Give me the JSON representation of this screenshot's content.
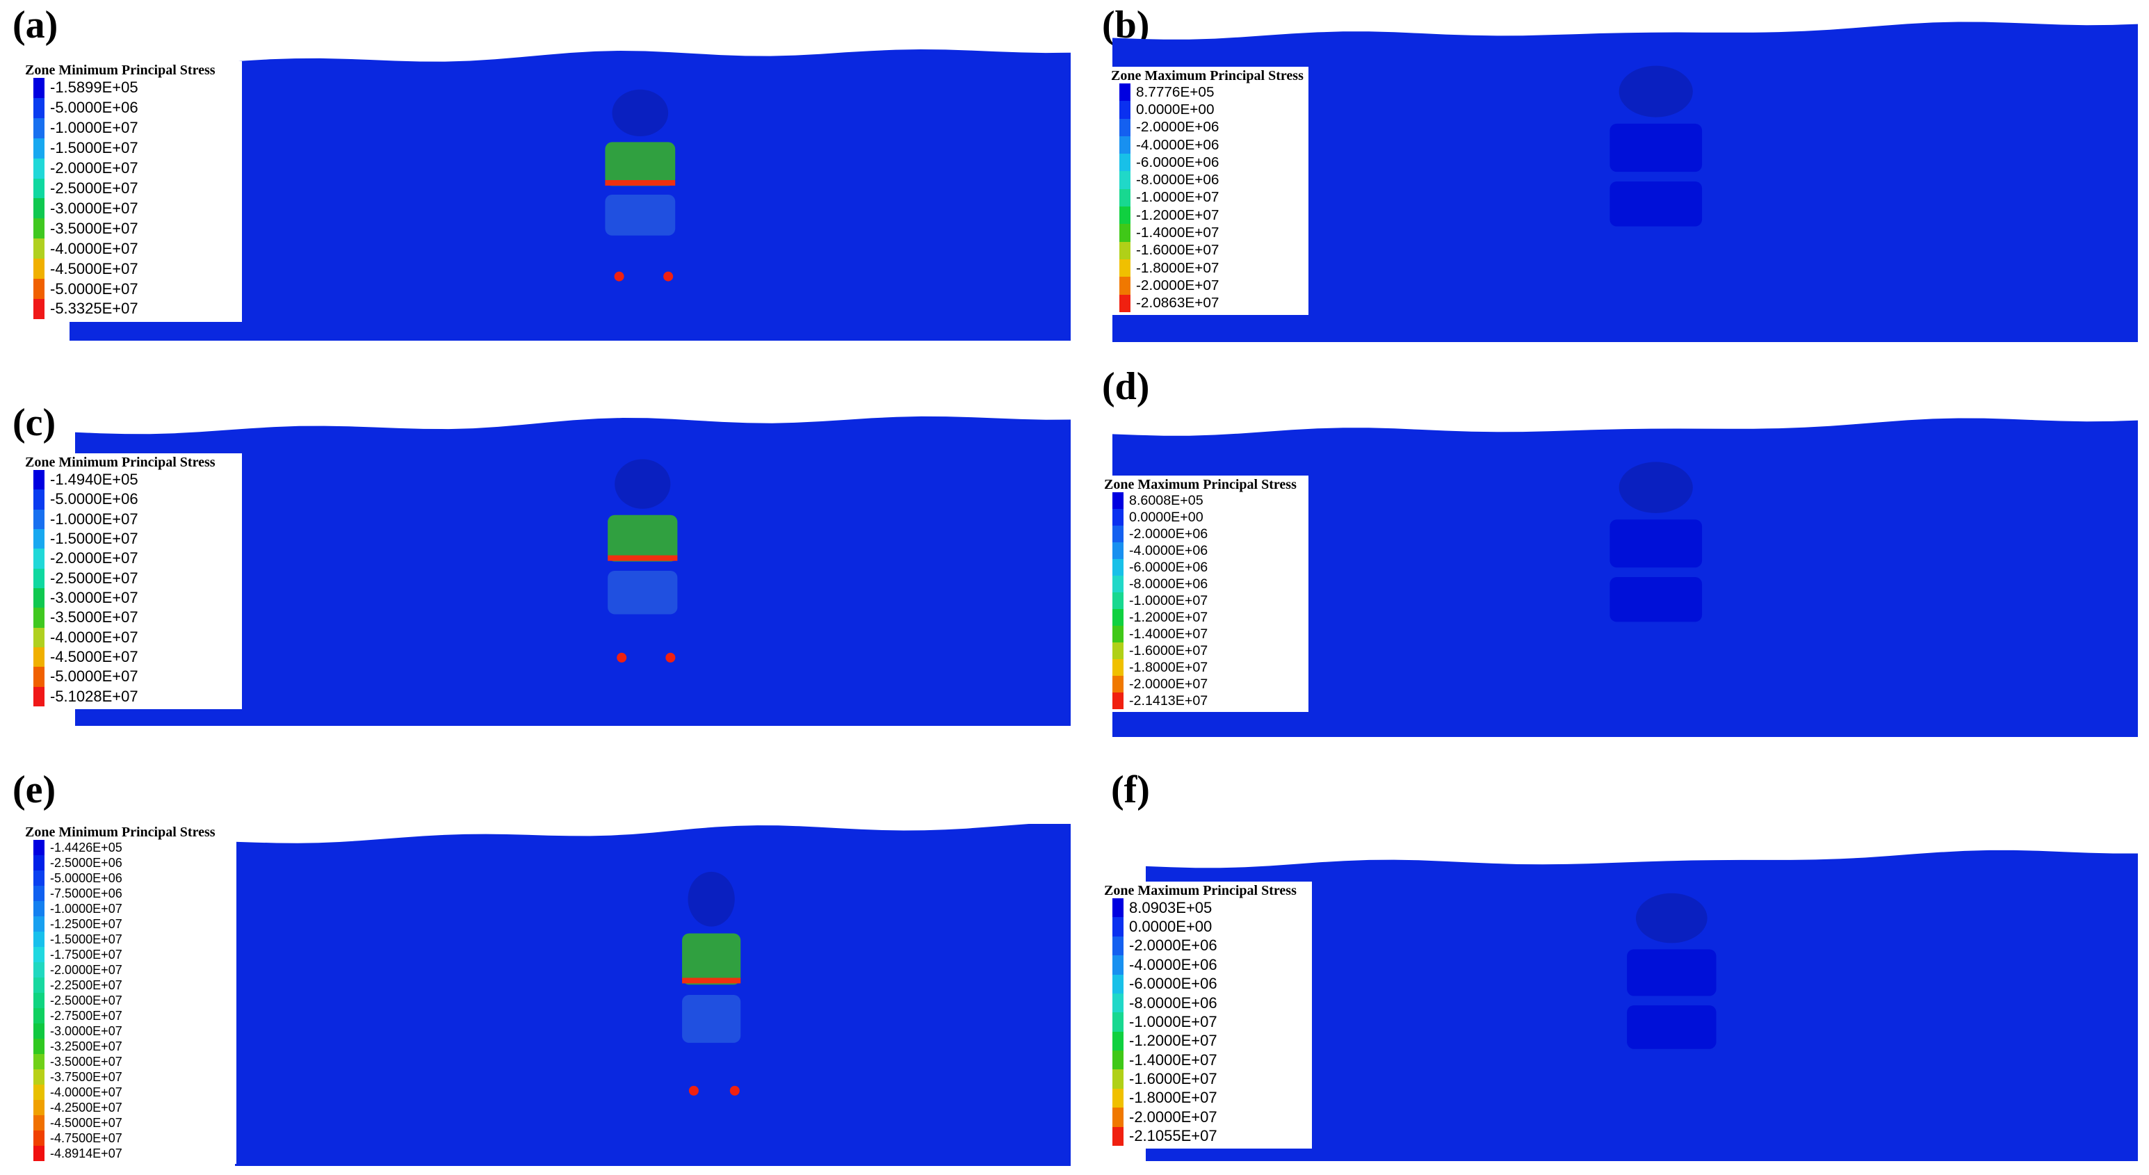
{
  "panels": [
    {
      "label": "(a)",
      "legend_title": "Zone Minimum Principal Stress",
      "legend_values": [
        "-1.5899E+05",
        "-5.0000E+06",
        "-1.0000E+07",
        "-1.5000E+07",
        "-2.0000E+07",
        "-2.5000E+07",
        "-3.0000E+07",
        "-3.5000E+07",
        "-4.0000E+07",
        "-4.5000E+07",
        "-5.0000E+07",
        "-5.3325E+07"
      ],
      "legend_colors": [
        "#0000e0",
        "#0a3cf0",
        "#1870f0",
        "#18a8f0",
        "#20d8d8",
        "#10d8a0",
        "#10c850",
        "#40c820",
        "#b0d020",
        "#f0b000",
        "#f06000",
        "#f01818"
      ],
      "band_colors": [
        "#0a28e0",
        "#1458f0",
        "#1490ec",
        "#20c0e8",
        "#28d8d0",
        "#20d898"
      ]
    },
    {
      "label": "(b)",
      "legend_title": "Zone Maximum Principal Stress",
      "legend_values": [
        "8.7776E+05",
        "0.0000E+00",
        "-2.0000E+06",
        "-4.0000E+06",
        "-6.0000E+06",
        "-8.0000E+06",
        "-1.0000E+07",
        "-1.2000E+07",
        "-1.4000E+07",
        "-1.6000E+07",
        "-1.8000E+07",
        "-2.0000E+07",
        "-2.0863E+07"
      ],
      "legend_colors": [
        "#0000e0",
        "#0a30f0",
        "#1460f0",
        "#1890f0",
        "#18c0e8",
        "#20d8c8",
        "#18d890",
        "#10d040",
        "#40c818",
        "#b0d018",
        "#f0c000",
        "#f07800",
        "#f02010"
      ],
      "band_colors": [
        "#0a28e0",
        "#1470f0",
        "#18b8e8",
        "#20d8b0",
        "#10d050",
        "#70d018",
        "#d8c010",
        "#f08010",
        "#f04010"
      ]
    },
    {
      "label": "(c)",
      "legend_title": "Zone Minimum Principal Stress",
      "legend_values": [
        "-1.4940E+05",
        "-5.0000E+06",
        "-1.0000E+07",
        "-1.5000E+07",
        "-2.0000E+07",
        "-2.5000E+07",
        "-3.0000E+07",
        "-3.5000E+07",
        "-4.0000E+07",
        "-4.5000E+07",
        "-5.0000E+07",
        "-5.1028E+07"
      ],
      "legend_colors": [
        "#0000e0",
        "#0a3cf0",
        "#1870f0",
        "#18a8f0",
        "#20d8d8",
        "#10d8a0",
        "#10c850",
        "#40c820",
        "#b0d020",
        "#f0b000",
        "#f06000",
        "#f01818"
      ],
      "band_colors": [
        "#0a28e0",
        "#1458f0",
        "#1490ec",
        "#20c0e8",
        "#28d8d0",
        "#20d898"
      ]
    },
    {
      "label": "(d)",
      "legend_title": "Zone Maximum Principal Stress",
      "legend_values": [
        "8.6008E+05",
        "0.0000E+00",
        "-2.0000E+06",
        "-4.0000E+06",
        "-6.0000E+06",
        "-8.0000E+06",
        "-1.0000E+07",
        "-1.2000E+07",
        "-1.4000E+07",
        "-1.6000E+07",
        "-1.8000E+07",
        "-2.0000E+07",
        "-2.1413E+07"
      ],
      "legend_colors": [
        "#0000e0",
        "#0a30f0",
        "#1460f0",
        "#1890f0",
        "#18c0e8",
        "#20d8c8",
        "#18d890",
        "#10d040",
        "#40c818",
        "#b0d018",
        "#f0c000",
        "#f07800",
        "#f02010"
      ],
      "band_colors": [
        "#0a28e0",
        "#1470f0",
        "#18b8e8",
        "#20d8b0",
        "#10d050",
        "#70d018",
        "#d8c010",
        "#f08010",
        "#f04010"
      ]
    },
    {
      "label": "(e)",
      "legend_title": "Zone Minimum Principal Stress",
      "legend_values": [
        "-1.4426E+05",
        "-2.5000E+06",
        "-5.0000E+06",
        "-7.5000E+06",
        "-1.0000E+07",
        "-1.2500E+07",
        "-1.5000E+07",
        "-1.7500E+07",
        "-2.0000E+07",
        "-2.2500E+07",
        "-2.5000E+07",
        "-2.7500E+07",
        "-3.0000E+07",
        "-3.2500E+07",
        "-3.5000E+07",
        "-3.7500E+07",
        "-4.0000E+07",
        "-4.2500E+07",
        "-4.5000E+07",
        "-4.7500E+07",
        "-4.8914E+07"
      ],
      "legend_colors": [
        "#0000e0",
        "#0020e8",
        "#0a40f0",
        "#1060f0",
        "#1480f0",
        "#18a0f0",
        "#18c0ec",
        "#20d8e0",
        "#20d8c0",
        "#18d8a0",
        "#10d480",
        "#10d060",
        "#10c840",
        "#30c820",
        "#70d018",
        "#b8d018",
        "#e8c000",
        "#f0a000",
        "#f07000",
        "#f04000",
        "#f01010"
      ],
      "band_colors": [
        "#0a28e0",
        "#1458f0",
        "#1490ec",
        "#20c0e8",
        "#28d8d0",
        "#20d898"
      ]
    },
    {
      "label": "(f)",
      "legend_title": "Zone Maximum Principal Stress",
      "legend_values": [
        "8.0903E+05",
        "0.0000E+00",
        "-2.0000E+06",
        "-4.0000E+06",
        "-6.0000E+06",
        "-8.0000E+06",
        "-1.0000E+07",
        "-1.2000E+07",
        "-1.4000E+07",
        "-1.6000E+07",
        "-1.8000E+07",
        "-2.0000E+07",
        "-2.1055E+07"
      ],
      "legend_colors": [
        "#0000e0",
        "#0a30f0",
        "#1460f0",
        "#1890f0",
        "#18c0e8",
        "#20d8c8",
        "#18d890",
        "#10d040",
        "#40c818",
        "#b0d018",
        "#f0c000",
        "#f07800",
        "#f02010"
      ],
      "band_colors": [
        "#0a28e0",
        "#1470f0",
        "#18b8e8",
        "#20d8b0",
        "#10d050",
        "#70d018",
        "#d8c010",
        "#f08010",
        "#f04010"
      ]
    }
  ]
}
